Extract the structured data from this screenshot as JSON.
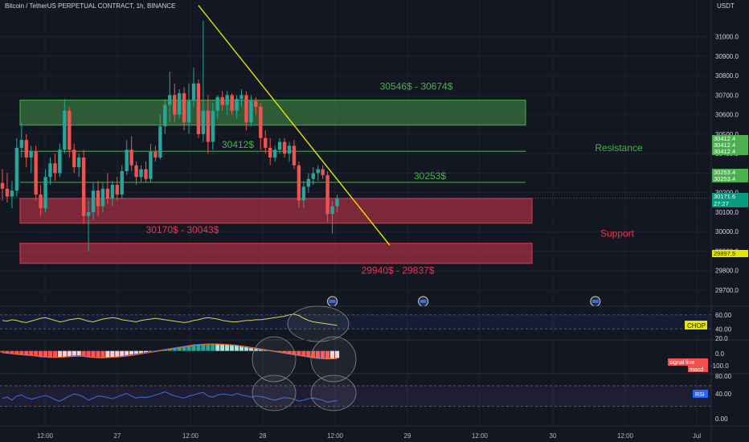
{
  "header": {
    "title": "Bitcoin / TetherUS PERPETUAL CONTRACT, 1h, BINANCE",
    "currency": "USDT"
  },
  "colors": {
    "background": "#131722",
    "up": "#26a69a",
    "down": "#ef5350",
    "resistance_zone": "#4caf50",
    "support_zone": "#e53950",
    "trendline": "#e6e600",
    "chop_line": "#d4d44a",
    "rsi_line": "#3b6fe0"
  },
  "chart_data": {
    "type": "candlestick",
    "symbol": "BTCUSDT.P",
    "timeframe": "1h",
    "ylim": [
      29630,
      31130
    ],
    "y_ticks": [
      29700,
      29800,
      29900,
      30000,
      30100,
      30200,
      30300,
      30400,
      30500,
      30600,
      30700,
      30800,
      30900,
      31000
    ],
    "x_ticks": [
      "12:00",
      "27",
      "12:00",
      "28",
      "12:00",
      "29",
      "12:00",
      "30",
      "12:00",
      "Jul"
    ],
    "candles": [
      {
        "o": 30250,
        "h": 30320,
        "l": 30160,
        "c": 30220
      },
      {
        "o": 30220,
        "h": 30300,
        "l": 30150,
        "c": 30180
      },
      {
        "o": 30180,
        "h": 30260,
        "l": 30120,
        "c": 30210
      },
      {
        "o": 30210,
        "h": 30480,
        "l": 30180,
        "c": 30430
      },
      {
        "o": 30430,
        "h": 30560,
        "l": 30380,
        "c": 30470
      },
      {
        "o": 30470,
        "h": 30500,
        "l": 30330,
        "c": 30380
      },
      {
        "o": 30380,
        "h": 30440,
        "l": 30300,
        "c": 30410
      },
      {
        "o": 30410,
        "h": 30440,
        "l": 30160,
        "c": 30190
      },
      {
        "o": 30190,
        "h": 30240,
        "l": 30080,
        "c": 30120
      },
      {
        "o": 30120,
        "h": 30320,
        "l": 30100,
        "c": 30280
      },
      {
        "o": 30280,
        "h": 30380,
        "l": 30240,
        "c": 30350
      },
      {
        "o": 30350,
        "h": 30400,
        "l": 30260,
        "c": 30300
      },
      {
        "o": 30300,
        "h": 30450,
        "l": 30280,
        "c": 30420
      },
      {
        "o": 30420,
        "h": 30680,
        "l": 30400,
        "c": 30620
      },
      {
        "o": 30620,
        "h": 30640,
        "l": 30380,
        "c": 30420
      },
      {
        "o": 30420,
        "h": 30450,
        "l": 30300,
        "c": 30330
      },
      {
        "o": 30330,
        "h": 30400,
        "l": 30280,
        "c": 30380
      },
      {
        "o": 30380,
        "h": 30420,
        "l": 30040,
        "c": 30080
      },
      {
        "o": 30080,
        "h": 30160,
        "l": 29900,
        "c": 30100
      },
      {
        "o": 30100,
        "h": 30250,
        "l": 30060,
        "c": 30210
      },
      {
        "o": 30210,
        "h": 30260,
        "l": 30080,
        "c": 30130
      },
      {
        "o": 30130,
        "h": 30250,
        "l": 30100,
        "c": 30220
      },
      {
        "o": 30220,
        "h": 30300,
        "l": 30140,
        "c": 30170
      },
      {
        "o": 30170,
        "h": 30260,
        "l": 30130,
        "c": 30240
      },
      {
        "o": 30240,
        "h": 30280,
        "l": 30160,
        "c": 30190
      },
      {
        "o": 30190,
        "h": 30340,
        "l": 30170,
        "c": 30310
      },
      {
        "o": 30310,
        "h": 30470,
        "l": 30290,
        "c": 30420
      },
      {
        "o": 30420,
        "h": 30490,
        "l": 30310,
        "c": 30340
      },
      {
        "o": 30340,
        "h": 30360,
        "l": 30240,
        "c": 30280
      },
      {
        "o": 30280,
        "h": 30340,
        "l": 30250,
        "c": 30320
      },
      {
        "o": 30320,
        "h": 30360,
        "l": 30250,
        "c": 30270
      },
      {
        "o": 30270,
        "h": 30450,
        "l": 30250,
        "c": 30410
      },
      {
        "o": 30410,
        "h": 30440,
        "l": 30360,
        "c": 30380
      },
      {
        "o": 30380,
        "h": 30600,
        "l": 30370,
        "c": 30540
      },
      {
        "o": 30540,
        "h": 30680,
        "l": 30500,
        "c": 30650
      },
      {
        "o": 30650,
        "h": 30820,
        "l": 30560,
        "c": 30700
      },
      {
        "o": 30700,
        "h": 30760,
        "l": 30560,
        "c": 30600
      },
      {
        "o": 30600,
        "h": 30730,
        "l": 30580,
        "c": 30710
      },
      {
        "o": 30710,
        "h": 30740,
        "l": 30520,
        "c": 30560
      },
      {
        "o": 30560,
        "h": 30760,
        "l": 30500,
        "c": 30670
      },
      {
        "o": 30670,
        "h": 30840,
        "l": 30640,
        "c": 30760
      },
      {
        "o": 30760,
        "h": 30780,
        "l": 30480,
        "c": 30500
      },
      {
        "o": 30500,
        "h": 31080,
        "l": 30460,
        "c": 30620
      },
      {
        "o": 30620,
        "h": 30700,
        "l": 30400,
        "c": 30460
      },
      {
        "o": 30460,
        "h": 30660,
        "l": 30420,
        "c": 30620
      },
      {
        "o": 30620,
        "h": 30700,
        "l": 30580,
        "c": 30690
      },
      {
        "o": 30690,
        "h": 30720,
        "l": 30620,
        "c": 30650
      },
      {
        "o": 30650,
        "h": 30720,
        "l": 30600,
        "c": 30700
      },
      {
        "o": 30700,
        "h": 30710,
        "l": 30600,
        "c": 30620
      },
      {
        "o": 30620,
        "h": 30700,
        "l": 30580,
        "c": 30680
      },
      {
        "o": 30680,
        "h": 30730,
        "l": 30640,
        "c": 30700
      },
      {
        "o": 30700,
        "h": 30720,
        "l": 30520,
        "c": 30560
      },
      {
        "o": 30560,
        "h": 30700,
        "l": 30540,
        "c": 30670
      },
      {
        "o": 30670,
        "h": 30690,
        "l": 30600,
        "c": 30640
      },
      {
        "o": 30640,
        "h": 30660,
        "l": 30420,
        "c": 30480
      },
      {
        "o": 30480,
        "h": 30520,
        "l": 30400,
        "c": 30430
      },
      {
        "o": 30430,
        "h": 30480,
        "l": 30340,
        "c": 30380
      },
      {
        "o": 30380,
        "h": 30440,
        "l": 30360,
        "c": 30420
      },
      {
        "o": 30420,
        "h": 30480,
        "l": 30400,
        "c": 30460
      },
      {
        "o": 30460,
        "h": 30480,
        "l": 30380,
        "c": 30400
      },
      {
        "o": 30400,
        "h": 30460,
        "l": 30360,
        "c": 30440
      },
      {
        "o": 30440,
        "h": 30470,
        "l": 30320,
        "c": 30340
      },
      {
        "o": 30340,
        "h": 30360,
        "l": 30120,
        "c": 30160
      },
      {
        "o": 30160,
        "h": 30260,
        "l": 30120,
        "c": 30230
      },
      {
        "o": 30230,
        "h": 30300,
        "l": 30200,
        "c": 30270
      },
      {
        "o": 30270,
        "h": 30330,
        "l": 30240,
        "c": 30300
      },
      {
        "o": 30300,
        "h": 30340,
        "l": 30260,
        "c": 30320
      },
      {
        "o": 30320,
        "h": 30340,
        "l": 30270,
        "c": 30290
      },
      {
        "o": 30290,
        "h": 30310,
        "l": 30050,
        "c": 30090
      },
      {
        "o": 30090,
        "h": 30160,
        "l": 29990,
        "c": 30130
      },
      {
        "o": 30130,
        "h": 30190,
        "l": 30100,
        "c": 30171.6
      }
    ],
    "zones": [
      {
        "label": "30546$ - 30674$",
        "low": 30546,
        "high": 30674,
        "kind": "resistance"
      },
      {
        "label": "30170$ - 30043$",
        "low": 30043,
        "high": 30170,
        "kind": "support"
      },
      {
        "label": "29940$ - 29837$",
        "low": 29837,
        "high": 29940,
        "kind": "support"
      }
    ],
    "hlines": [
      {
        "label": "30412$",
        "value": 30412
      },
      {
        "label": "30253$",
        "value": 30253
      }
    ],
    "trendline": {
      "x1": 41,
      "y1": 31160,
      "x2": 81,
      "y2": 29930
    },
    "side_labels": {
      "resistance": "Resistance",
      "support": "Support"
    },
    "price_tags": [
      {
        "value": 30412.4,
        "text": "30412.4",
        "color": "#4caf50"
      },
      {
        "value": 30412.4,
        "text": "30412.4",
        "color": "#4caf50"
      },
      {
        "value": 30412.4,
        "text": "30412.4",
        "color": "#4caf50"
      },
      {
        "value": 30253.4,
        "text": "30253.4",
        "color": "#4caf50"
      },
      {
        "value": 30253.4,
        "text": "30253.4",
        "color": "#4caf50"
      },
      {
        "value": 30171.6,
        "text": "30171.6",
        "color": "#089981",
        "sub": "27:27"
      },
      {
        "value": 29897.5,
        "text": "29897.5",
        "color": "#e6e600",
        "dark": true
      }
    ],
    "events_x": [
      69,
      88,
      124
    ],
    "indicators": {
      "chop": {
        "label": "CHOP",
        "ticks": [
          "60.00",
          "40.00"
        ],
        "ylim": [
          30,
          70
        ],
        "band": [
          40,
          60
        ],
        "values": [
          52,
          51,
          53,
          52,
          50,
          49,
          51,
          53,
          55,
          56,
          54,
          52,
          50,
          51,
          53,
          54,
          55,
          53,
          51,
          50,
          52,
          54,
          55,
          56,
          55,
          53,
          52,
          51,
          50,
          52,
          53,
          54,
          55,
          54,
          53,
          52,
          51,
          50,
          49,
          50,
          52,
          53,
          55,
          56,
          55,
          54,
          52,
          51,
          50,
          50,
          51,
          52,
          52,
          53,
          53,
          54,
          55,
          56,
          57,
          58,
          60,
          61,
          59,
          55,
          52,
          50,
          49,
          48,
          47,
          46,
          45
        ]
      },
      "macd": {
        "labels": [
          "signal line",
          "macd"
        ],
        "ticks": [
          "20.0",
          "0.0",
          "-100.0"
        ],
        "ylim": [
          -130,
          60
        ],
        "hist": [
          -10,
          -15,
          -18,
          -20,
          -22,
          -25,
          -28,
          -30,
          -35,
          -38,
          -40,
          -42,
          -40,
          -38,
          -35,
          -32,
          -30,
          -35,
          -40,
          -42,
          -44,
          -45,
          -42,
          -40,
          -38,
          -35,
          -30,
          -25,
          -20,
          -15,
          -10,
          -5,
          0,
          5,
          10,
          15,
          20,
          25,
          30,
          35,
          40,
          42,
          44,
          45,
          45,
          44,
          42,
          40,
          38,
          35,
          30,
          25,
          20,
          15,
          10,
          5,
          0,
          -5,
          -10,
          -15,
          -20,
          -25,
          -30,
          -35,
          -40,
          -45,
          -48,
          -50,
          -50,
          -48,
          -45
        ],
        "macd": [
          -10,
          -15,
          -18,
          -22,
          -25,
          -28,
          -30,
          -34,
          -38,
          -40,
          -42,
          -42,
          -40,
          -38,
          -35,
          -32,
          -30,
          -35,
          -40,
          -42,
          -44,
          -45,
          -42,
          -40,
          -38,
          -35,
          -30,
          -25,
          -20,
          -15,
          -10,
          -5,
          0,
          5,
          10,
          15,
          20,
          25,
          30,
          35,
          40,
          42,
          44,
          45,
          45,
          44,
          42,
          40,
          38,
          35,
          30,
          25,
          20,
          15,
          10,
          5,
          0,
          -5,
          -10,
          -15,
          -20,
          -25,
          -30,
          -35,
          -40,
          -45,
          -48,
          -50,
          -52,
          -50,
          -48
        ],
        "signal": [
          -12,
          -14,
          -17,
          -20,
          -23,
          -26,
          -28,
          -31,
          -35,
          -37,
          -39,
          -40,
          -40,
          -39,
          -37,
          -35,
          -33,
          -34,
          -37,
          -40,
          -42,
          -43,
          -42,
          -41,
          -39,
          -37,
          -33,
          -29,
          -24,
          -19,
          -14,
          -9,
          -4,
          1,
          6,
          11,
          16,
          21,
          26,
          31,
          35,
          38,
          41,
          43,
          44,
          44,
          43,
          41,
          39,
          36,
          32,
          28,
          23,
          18,
          13,
          8,
          3,
          -2,
          -7,
          -12,
          -17,
          -22,
          -27,
          -32,
          -37,
          -41,
          -45,
          -48,
          -50,
          -50,
          -49
        ]
      },
      "rsi": {
        "label": "RSI",
        "ticks": [
          "80.00",
          "40.00",
          "0.00"
        ],
        "ylim": [
          0,
          90
        ],
        "band": [
          30,
          70
        ],
        "values": [
          45,
          48,
          42,
          50,
          52,
          47,
          44,
          46,
          49,
          51,
          48,
          43,
          40,
          45,
          50,
          54,
          52,
          48,
          42,
          46,
          50,
          49,
          47,
          45,
          48,
          52,
          55,
          50,
          46,
          48,
          47,
          49,
          52,
          55,
          58,
          54,
          50,
          48,
          46,
          50,
          52,
          55,
          57,
          50,
          48,
          52,
          54,
          53,
          51,
          55,
          52,
          50,
          48,
          50,
          49,
          47,
          44,
          42,
          45,
          47,
          46,
          44,
          40,
          42,
          45,
          46,
          44,
          42,
          38,
          40,
          41
        ]
      }
    }
  }
}
